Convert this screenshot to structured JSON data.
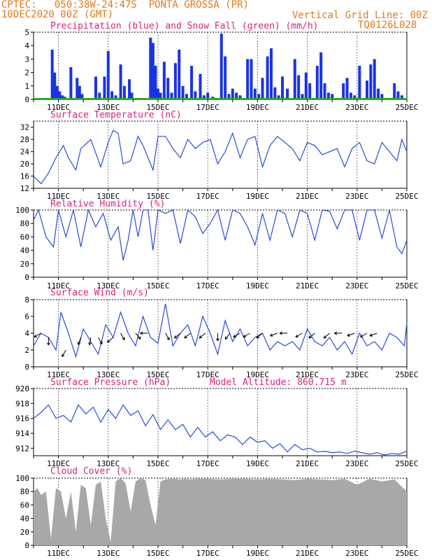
{
  "header": {
    "line1": "CPTEC:   050:38W-24:47S  PONTA GROSSA (PR)",
    "line2": "10DEC2020 00Z (GMT)",
    "grid_note": "Vertical Grid Line: 00Z",
    "code": "TQ0126L028"
  },
  "colors": {
    "header": "#e07a1a",
    "title": "#e0207a",
    "precip": "#1a33e6",
    "snow": "#22aa22",
    "line": "#2a4ad8",
    "cloud": "#a8a8a8",
    "axis": "#000000"
  },
  "x_ticks": [
    "11DEC",
    "13DEC",
    "15DEC",
    "17DEC",
    "19DEC",
    "21DEC",
    "23DEC",
    "25DEC"
  ],
  "chart_data": [
    {
      "type": "bar",
      "title": "Precipitation (blue) and Snow Fall (green) (mm/h)",
      "ylim": [
        0,
        5
      ],
      "yticks": [
        "0",
        "1",
        "2",
        "3",
        "4",
        "5"
      ],
      "xlim_days": [
        0,
        15
      ],
      "series": [
        {
          "name": "Precipitation",
          "x_days": [
            0.75,
            0.85,
            0.95,
            1.05,
            1.15,
            1.25,
            1.35,
            1.5,
            1.75,
            1.85,
            1.95,
            2.5,
            2.65,
            2.85,
            3.0,
            3.15,
            3.3,
            3.5,
            3.65,
            3.85,
            3.95,
            4.7,
            4.8,
            4.9,
            5.0,
            5.1,
            5.25,
            5.4,
            5.55,
            5.7,
            5.85,
            6.0,
            6.15,
            6.35,
            6.5,
            6.7,
            6.85,
            7.0,
            7.2,
            7.55,
            7.7,
            7.85,
            8.0,
            8.15,
            8.3,
            8.6,
            8.75,
            8.9,
            9.05,
            9.2,
            9.4,
            9.55,
            9.7,
            9.85,
            10.0,
            10.2,
            10.5,
            10.65,
            10.8,
            10.95,
            11.1,
            11.4,
            11.55,
            11.7,
            11.85,
            12.0,
            12.45,
            12.6,
            12.75,
            12.9,
            13.1,
            13.4,
            13.55,
            13.7,
            13.85,
            14.0,
            14.5,
            14.65,
            14.8
          ],
          "values": [
            3.7,
            2.0,
            1.0,
            0.6,
            0.3,
            0.2,
            0.1,
            2.4,
            1.6,
            1.0,
            0.4,
            1.7,
            0.5,
            1.7,
            3.6,
            0.6,
            0.3,
            2.6,
            1.0,
            1.5,
            0.5,
            4.6,
            4.2,
            2.5,
            0.8,
            0.5,
            2.8,
            1.6,
            0.5,
            2.7,
            3.7,
            1.0,
            0.4,
            2.5,
            0.6,
            1.9,
            0.3,
            0.5,
            0.2,
            4.9,
            3.2,
            0.4,
            0.8,
            0.5,
            0.3,
            3.0,
            3.0,
            0.8,
            0.4,
            1.6,
            3.2,
            3.8,
            0.9,
            0.3,
            1.7,
            0.8,
            3.0,
            1.8,
            0.4,
            2.0,
            1.2,
            2.5,
            3.5,
            1.2,
            0.5,
            0.4,
            1.2,
            1.6,
            0.5,
            0.3,
            2.5,
            1.4,
            2.6,
            3.0,
            0.8,
            0.4,
            1.2,
            0.6,
            0.3
          ]
        },
        {
          "name": "Snow Fall",
          "x_days": [
            0,
            15
          ],
          "values": [
            0,
            0
          ]
        }
      ]
    },
    {
      "type": "line",
      "title": "Surface Temperature (nC)",
      "ylim": [
        12,
        34
      ],
      "yticks": [
        "12",
        "16",
        "20",
        "24",
        "28",
        "32"
      ],
      "x_days": [
        0,
        0.3,
        0.6,
        0.9,
        1.2,
        1.4,
        1.7,
        1.9,
        2.3,
        2.7,
        3.0,
        3.2,
        3.4,
        3.6,
        3.9,
        4.2,
        4.4,
        4.6,
        4.8,
        5.0,
        5.3,
        5.6,
        5.9,
        6.2,
        6.5,
        6.8,
        7.1,
        7.4,
        7.7,
        8.0,
        8.3,
        8.6,
        8.9,
        9.2,
        9.5,
        9.8,
        10.1,
        10.4,
        10.7,
        11.0,
        11.3,
        11.6,
        11.9,
        12.2,
        12.5,
        12.8,
        13.1,
        13.4,
        13.7,
        14.0,
        14.3,
        14.6,
        14.8,
        15.0
      ],
      "values": [
        16,
        13.5,
        17,
        22,
        26,
        22,
        18,
        25,
        28,
        19,
        27,
        31,
        30,
        20,
        21,
        29,
        26,
        22,
        18,
        29,
        29,
        25,
        22,
        28,
        25,
        27,
        28,
        20,
        24,
        30,
        22,
        28,
        29,
        19,
        26,
        29,
        27,
        25,
        21,
        27,
        26,
        23,
        24,
        25,
        19,
        25,
        27,
        21,
        20,
        27,
        24,
        21,
        28,
        24
      ]
    },
    {
      "type": "line",
      "title": "Relative Humidity (%)",
      "ylim": [
        0,
        100
      ],
      "yticks": [
        "0",
        "20",
        "40",
        "60",
        "80",
        "100"
      ],
      "x_days": [
        0,
        0.2,
        0.5,
        0.8,
        1.0,
        1.3,
        1.6,
        1.9,
        2.2,
        2.5,
        2.8,
        3.1,
        3.4,
        3.6,
        3.8,
        4.0,
        4.2,
        4.4,
        4.6,
        4.8,
        5.0,
        5.3,
        5.6,
        5.9,
        6.2,
        6.5,
        6.8,
        7.1,
        7.4,
        7.7,
        8.0,
        8.3,
        8.6,
        8.9,
        9.2,
        9.5,
        9.8,
        10.1,
        10.4,
        10.7,
        11.0,
        11.3,
        11.6,
        11.9,
        12.2,
        12.5,
        12.8,
        13.1,
        13.4,
        13.7,
        14.0,
        14.3,
        14.6,
        14.8,
        15.0
      ],
      "values": [
        85,
        100,
        60,
        45,
        100,
        60,
        100,
        45,
        100,
        75,
        95,
        55,
        75,
        25,
        55,
        100,
        60,
        100,
        100,
        40,
        100,
        95,
        100,
        50,
        100,
        90,
        65,
        80,
        100,
        55,
        100,
        95,
        75,
        48,
        95,
        55,
        100,
        95,
        60,
        100,
        95,
        55,
        100,
        98,
        72,
        100,
        100,
        55,
        100,
        100,
        58,
        100,
        45,
        35,
        55
      ]
    },
    {
      "type": "line",
      "title": "Surface Wind (m/s)",
      "ylim": [
        0,
        8
      ],
      "yticks": [
        "0",
        "2",
        "4",
        "6",
        "8"
      ],
      "x_days": [
        0,
        0.3,
        0.6,
        0.9,
        1.1,
        1.4,
        1.7,
        2.0,
        2.3,
        2.6,
        2.9,
        3.2,
        3.5,
        3.8,
        4.1,
        4.4,
        4.7,
        5.0,
        5.3,
        5.6,
        5.9,
        6.2,
        6.5,
        6.8,
        7.1,
        7.4,
        7.7,
        8.0,
        8.3,
        8.6,
        8.9,
        9.2,
        9.5,
        9.8,
        10.1,
        10.4,
        10.7,
        11.0,
        11.3,
        11.6,
        11.9,
        12.2,
        12.5,
        12.8,
        13.1,
        13.4,
        13.7,
        14.0,
        14.3,
        14.6,
        14.9,
        15.0
      ],
      "values": [
        2.5,
        4.0,
        3.5,
        2.0,
        6.5,
        4.0,
        1.2,
        4.5,
        3.0,
        1.5,
        5.0,
        3.5,
        6.5,
        4.0,
        2.5,
        6.0,
        3.5,
        2.8,
        7.5,
        2.5,
        4.0,
        5.0,
        2.5,
        6.0,
        4.0,
        1.5,
        5.5,
        3.0,
        4.5,
        2.5,
        3.5,
        4.0,
        2.0,
        3.0,
        2.5,
        3.0,
        2.0,
        4.5,
        3.0,
        2.5,
        3.5,
        2.0,
        3.0,
        1.5,
        4.0,
        2.5,
        3.0,
        2.0,
        4.0,
        3.5,
        2.5,
        5.2
      ]
    },
    {
      "type": "line",
      "title": "Surface Pressure (hPa)",
      "annotation": "Model Altitude: 860.715 m",
      "ylim": [
        911,
        920
      ],
      "yticks": [
        "912",
        "914",
        "916",
        "918",
        "920"
      ],
      "x_days": [
        0,
        0.3,
        0.6,
        0.9,
        1.2,
        1.5,
        1.8,
        2.1,
        2.4,
        2.7,
        3.0,
        3.3,
        3.6,
        3.9,
        4.2,
        4.5,
        4.8,
        5.1,
        5.4,
        5.7,
        6.0,
        6.3,
        6.6,
        6.9,
        7.2,
        7.5,
        7.8,
        8.1,
        8.4,
        8.7,
        9.0,
        9.3,
        9.6,
        9.9,
        10.2,
        10.5,
        10.8,
        11.1,
        11.4,
        11.7,
        12.0,
        12.3,
        12.6,
        12.9,
        13.2,
        13.5,
        13.8,
        14.1,
        14.4,
        14.7,
        15.0
      ],
      "values": [
        916,
        916.8,
        917.8,
        916,
        916.4,
        915.5,
        917.8,
        916.6,
        917.5,
        915.5,
        917.2,
        916,
        917.8,
        916.4,
        917,
        915,
        916.5,
        914.5,
        915.8,
        914.5,
        915.2,
        913.5,
        914.8,
        913.5,
        914.2,
        913,
        913.8,
        913.5,
        912.5,
        913.5,
        912.8,
        913,
        912,
        912.6,
        911.5,
        912.5,
        911.8,
        912,
        911.5,
        911.6,
        911.4,
        911.5,
        911.3,
        911.6,
        911.4,
        911.2,
        911.4,
        911.1,
        911.3,
        911.2,
        911.6
      ]
    },
    {
      "type": "area",
      "title": "Cloud Cover (%)",
      "ylim": [
        0,
        100
      ],
      "yticks": [
        "0",
        "20",
        "40",
        "60",
        "80",
        "100"
      ],
      "x_days": [
        0,
        0.15,
        0.3,
        0.5,
        0.7,
        0.9,
        1.1,
        1.3,
        1.5,
        1.7,
        1.9,
        2.1,
        2.3,
        2.5,
        2.7,
        2.9,
        3.1,
        3.3,
        3.5,
        3.7,
        3.9,
        4.1,
        4.3,
        4.5,
        4.7,
        4.9,
        5.1,
        5.3,
        5.5,
        5.7,
        5.9,
        6.1,
        6.3,
        6.5,
        7.0,
        7.5,
        8.0,
        8.5,
        9.0,
        9.5,
        10.0,
        10.5,
        11.0,
        11.5,
        12.0,
        12.5,
        13.0,
        13.5,
        14.0,
        14.5,
        15.0
      ],
      "values": [
        80,
        85,
        75,
        80,
        10,
        85,
        80,
        40,
        80,
        20,
        90,
        85,
        30,
        90,
        95,
        40,
        5,
        95,
        100,
        92,
        50,
        95,
        100,
        97,
        60,
        30,
        95,
        98,
        99,
        99,
        98,
        99,
        98,
        99,
        99,
        98,
        99,
        99,
        98,
        99,
        98,
        97,
        99,
        98,
        97,
        99,
        90,
        99,
        95,
        98,
        80
      ]
    }
  ]
}
